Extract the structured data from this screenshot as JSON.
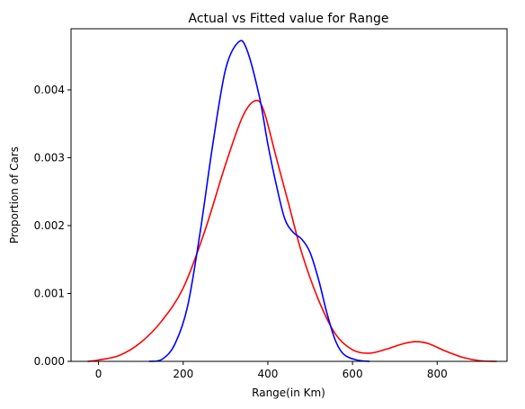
{
  "chart_data": {
    "type": "line",
    "title": "Actual vs Fitted value for Range",
    "xlabel": "Range(in Km)",
    "ylabel": "Proportion of Cars",
    "xlim": [
      -65,
      965
    ],
    "ylim": [
      0,
      0.0049
    ],
    "x_ticks": [
      0,
      200,
      400,
      600,
      800
    ],
    "y_ticks": [
      0.0,
      0.001,
      0.002,
      0.003,
      0.004
    ],
    "y_tick_labels": [
      "0.000",
      "0.001",
      "0.002",
      "0.003",
      "0.004"
    ],
    "grid": false,
    "series": [
      {
        "color": "#ff0000",
        "points": [
          [
            -25,
            0.0
          ],
          [
            0,
            2e-05
          ],
          [
            50,
            9e-05
          ],
          [
            100,
            0.00028
          ],
          [
            150,
            0.0006
          ],
          [
            200,
            0.00108
          ],
          [
            250,
            0.0019
          ],
          [
            300,
            0.0029
          ],
          [
            340,
            0.0036
          ],
          [
            370,
            0.00384
          ],
          [
            390,
            0.0037
          ],
          [
            420,
            0.003
          ],
          [
            450,
            0.0023
          ],
          [
            480,
            0.0016
          ],
          [
            520,
            0.0009
          ],
          [
            560,
            0.0004
          ],
          [
            600,
            0.00017
          ],
          [
            640,
            0.00012
          ],
          [
            680,
            0.00018
          ],
          [
            720,
            0.00026
          ],
          [
            750,
            0.00029
          ],
          [
            780,
            0.00026
          ],
          [
            820,
            0.00015
          ],
          [
            860,
            6e-05
          ],
          [
            900,
            1e-05
          ],
          [
            940,
            0.0
          ]
        ]
      },
      {
        "color": "#0000ff",
        "points": [
          [
            120,
            0.0
          ],
          [
            150,
            3e-05
          ],
          [
            180,
            0.00025
          ],
          [
            210,
            0.0008
          ],
          [
            240,
            0.0019
          ],
          [
            270,
            0.0032
          ],
          [
            300,
            0.0043
          ],
          [
            330,
            0.0047
          ],
          [
            350,
            0.0046
          ],
          [
            380,
            0.0039
          ],
          [
            400,
            0.0032
          ],
          [
            420,
            0.0026
          ],
          [
            440,
            0.0021
          ],
          [
            460,
            0.0019
          ],
          [
            480,
            0.0018
          ],
          [
            500,
            0.0016
          ],
          [
            520,
            0.0012
          ],
          [
            540,
            0.0007
          ],
          [
            560,
            0.0003
          ],
          [
            580,
            0.0001
          ],
          [
            610,
            2e-05
          ],
          [
            640,
            0.0
          ]
        ]
      }
    ]
  }
}
